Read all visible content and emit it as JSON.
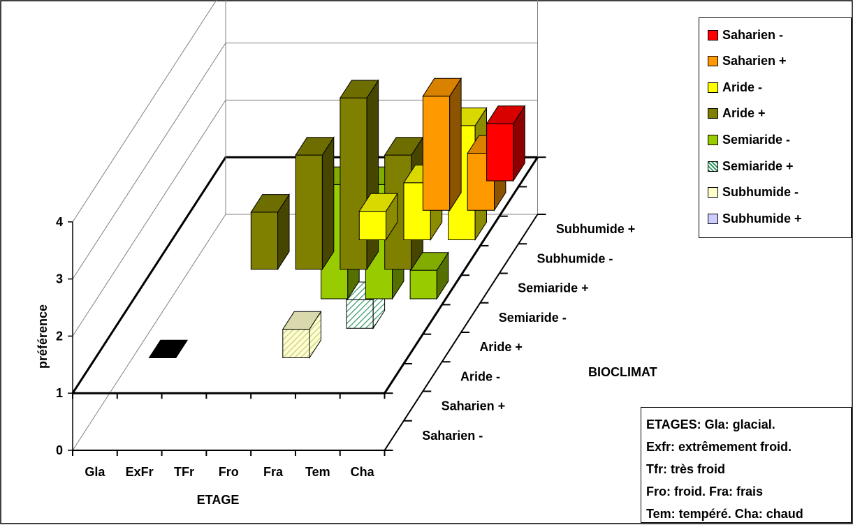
{
  "chart_data": {
    "type": "bar",
    "subtype": "3d-column",
    "x_categories": [
      "Gla",
      "ExFr",
      "TFr",
      "Fro",
      "Fra",
      "Tem",
      "Cha"
    ],
    "z_categories": [
      "Saharien -",
      "Saharien +",
      "Aride -",
      "Aride +",
      "Semiaride -",
      "Semiaride +",
      "Subhumide -",
      "Subhumide +"
    ],
    "xlabel": "ETAGE",
    "ylabel": "préférence",
    "zlabel": "BIOCLIMAT",
    "yticks": [
      "0",
      "1",
      "2",
      "3",
      "4"
    ],
    "ylim": [
      0,
      4
    ],
    "legend_position": "top-right",
    "series": [
      {
        "name": "Saharien -",
        "color": "#ff0000",
        "values": [
          null,
          null,
          null,
          null,
          null,
          null,
          1.0
        ]
      },
      {
        "name": "Saharien +",
        "color": "#ff9900",
        "values": [
          null,
          null,
          null,
          null,
          null,
          2.0,
          1.0
        ]
      },
      {
        "name": "Aride -",
        "color": "#ffff00",
        "values": [
          null,
          null,
          null,
          null,
          0.5,
          1.0,
          2.0
        ]
      },
      {
        "name": "Aride +",
        "color": "#808000",
        "values": [
          null,
          null,
          1.0,
          2.0,
          3.0,
          2.0,
          null
        ]
      },
      {
        "name": "Semiaride -",
        "color": "#99cc00",
        "values": [
          null,
          null,
          null,
          null,
          2.0,
          2.0,
          0.5
        ]
      },
      {
        "name": "Semiaride +",
        "color": "#339966",
        "pattern": "hatch",
        "values": [
          null,
          null,
          null,
          null,
          null,
          0.5,
          null
        ]
      },
      {
        "name": "Subhumide -",
        "color": "#ffffcc",
        "values": [
          null,
          0.0,
          null,
          null,
          0.5,
          null,
          null
        ]
      },
      {
        "name": "Subhumide +",
        "color": "#ccccff",
        "values": [
          null,
          null,
          null,
          null,
          null,
          null,
          null
        ]
      }
    ]
  },
  "note": {
    "lines": [
      "ETAGES:     Gla: glacial.",
      "Exfr: extrêmement froid.",
      "Tfr: très froid",
      "Fro: froid. Fra: frais",
      "Tem: tempéré. Cha: chaud"
    ]
  }
}
